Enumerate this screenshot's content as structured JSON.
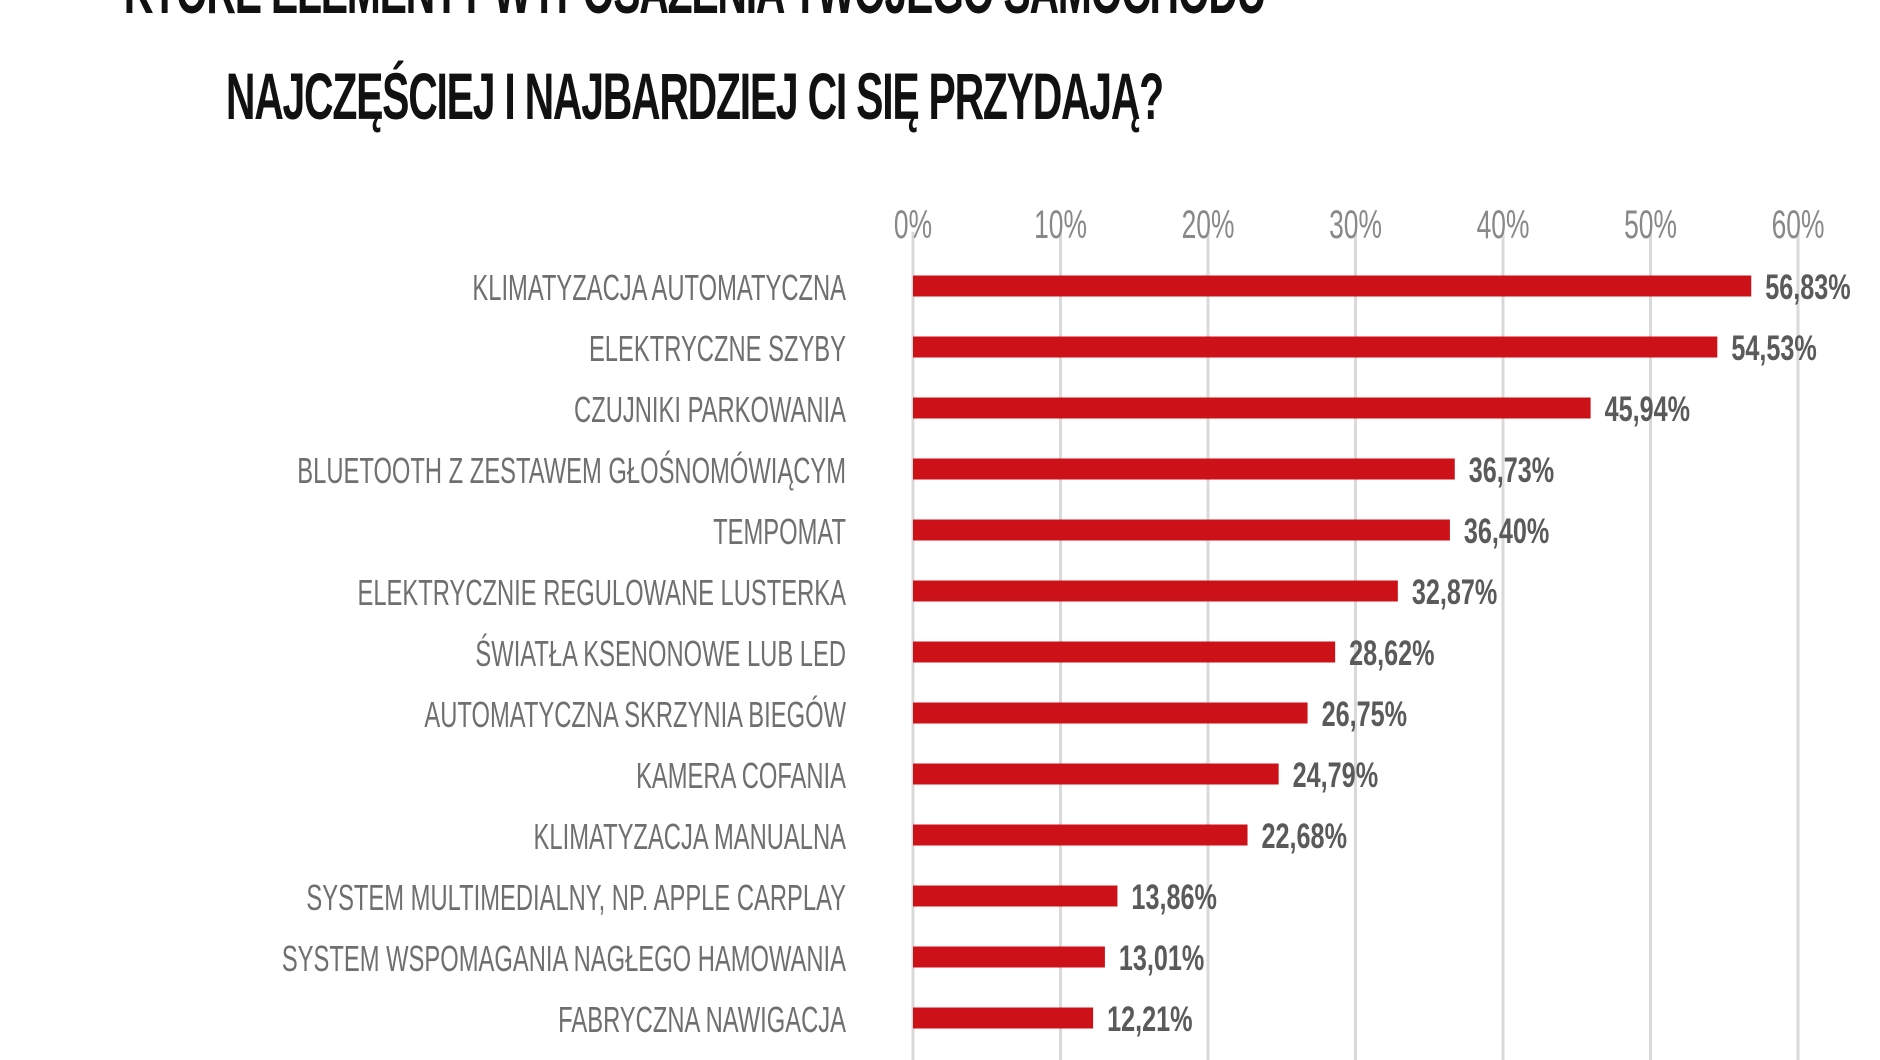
{
  "title": {
    "line1": "KTÓRE ELEMENTY WYPOSAŻENIA TWOJEGO SAMOCHODU",
    "line2": "NAJCZĘŚCIEJ I NAJBARDZIEJ CI SIĘ PRZYDAJĄ?"
  },
  "colors": {
    "bar": "#cc1119",
    "category_text": "#6f6f6f",
    "value_text": "#5a5a5a",
    "tick_text": "#888888",
    "grid": "#d9d9d9",
    "title_text": "#111111"
  },
  "chart_data": {
    "type": "bar",
    "orientation": "horizontal",
    "title": "KTÓRE ELEMENTY WYPOSAŻENIA TWOJEGO SAMOCHODU NAJCZĘŚCIEJ I NAJBARDZIEJ CI SIĘ PRZYDAJĄ?",
    "categories": [
      "KLIMATYZACJA AUTOMATYCZNA",
      "ELEKTRYCZNE SZYBY",
      "CZUJNIKI PARKOWANIA",
      "BLUETOOTH Z ZESTAWEM GŁOŚNOMÓWIĄCYM",
      "TEMPOMAT",
      "ELEKTRYCZNIE REGULOWANE LUSTERKA",
      "ŚWIATŁA KSENONOWE LUB LED",
      "AUTOMATYCZNA SKRZYNIA BIEGÓW",
      "KAMERA COFANIA",
      "KLIMATYZACJA MANUALNA",
      "SYSTEM MULTIMEDIALNY, NP. APPLE CARPLAY",
      "SYSTEM WSPOMAGANIA NAGŁEGO HAMOWANIA",
      "FABRYCZNA NAWIGACJA"
    ],
    "values": [
      56.83,
      54.53,
      45.94,
      36.73,
      36.4,
      32.87,
      28.62,
      26.75,
      24.79,
      22.68,
      13.86,
      13.01,
      12.21
    ],
    "value_labels": [
      "56,83%",
      "54,53%",
      "45,94%",
      "36,73%",
      "36,40%",
      "32,87%",
      "28,62%",
      "26,75%",
      "24,79%",
      "22,68%",
      "13,86%",
      "13,01%",
      "12,21%"
    ],
    "x_ticks": [
      0,
      10,
      20,
      30,
      40,
      50,
      60
    ],
    "x_tick_labels": [
      "0%",
      "10%",
      "20%",
      "30%",
      "40%",
      "50%",
      "60%"
    ],
    "xlim": [
      0,
      60
    ],
    "xlabel": "",
    "ylabel": "",
    "grid": true,
    "legend": "none"
  }
}
